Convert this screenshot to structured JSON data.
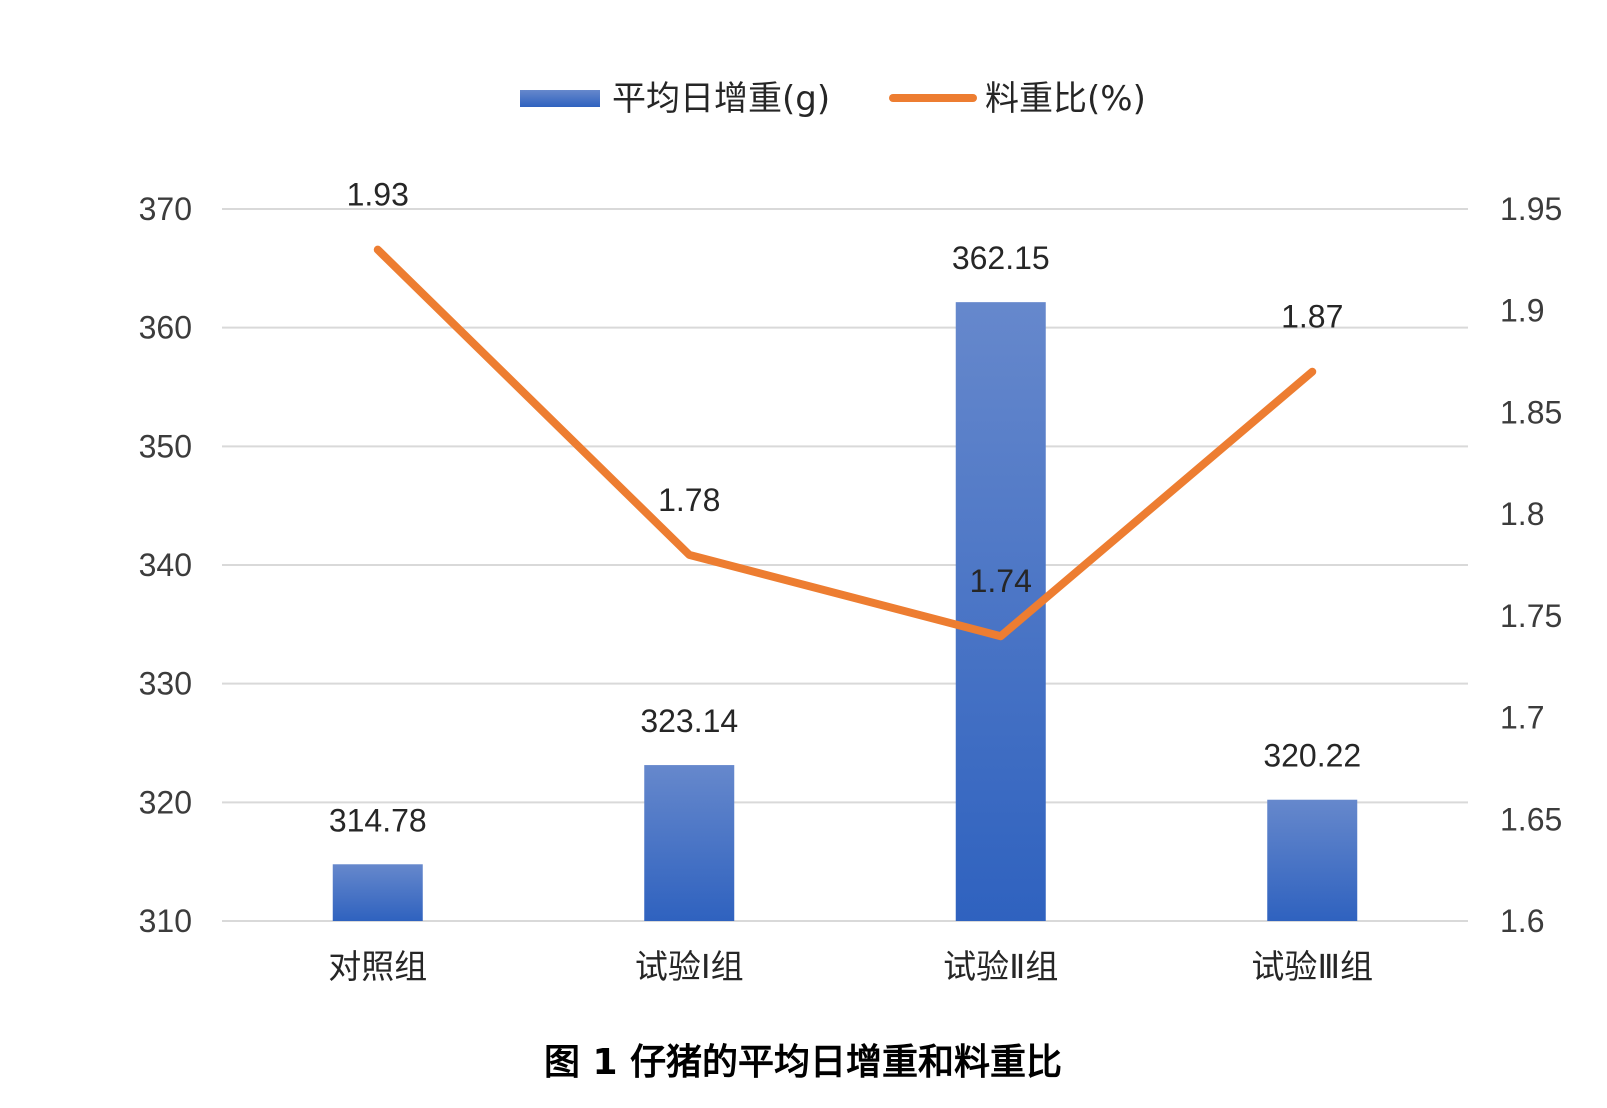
{
  "caption": "图 1 仔猪的平均日增重和料重比",
  "chart_data": {
    "type": "bar",
    "categories": [
      "对照组",
      "试验Ⅰ组",
      "试验Ⅱ组",
      "试验Ⅲ组"
    ],
    "series": [
      {
        "name": "平均日增重(g)",
        "type": "bar",
        "axis": "left",
        "color": "#3a6fcc",
        "values": [
          314.78,
          323.14,
          362.15,
          320.22
        ],
        "labels": [
          "314.78",
          "323.14",
          "362.15",
          "320.22"
        ]
      },
      {
        "name": "料重比(%)",
        "type": "line",
        "axis": "right",
        "color": "#ed7d31",
        "values": [
          1.93,
          1.78,
          1.74,
          1.87
        ],
        "labels": [
          "1.93",
          "1.78",
          "1.74",
          "1.87"
        ]
      }
    ],
    "y_left": {
      "ylim": [
        310,
        370
      ],
      "ticks": [
        "310",
        "320",
        "330",
        "340",
        "350",
        "360",
        "370"
      ]
    },
    "y_right": {
      "ylim": [
        1.6,
        1.95
      ],
      "ticks": [
        "1.6",
        "1.65",
        "1.7",
        "1.75",
        "1.8",
        "1.85",
        "1.9",
        "1.95"
      ]
    },
    "grid": true,
    "legend": "top-center"
  }
}
